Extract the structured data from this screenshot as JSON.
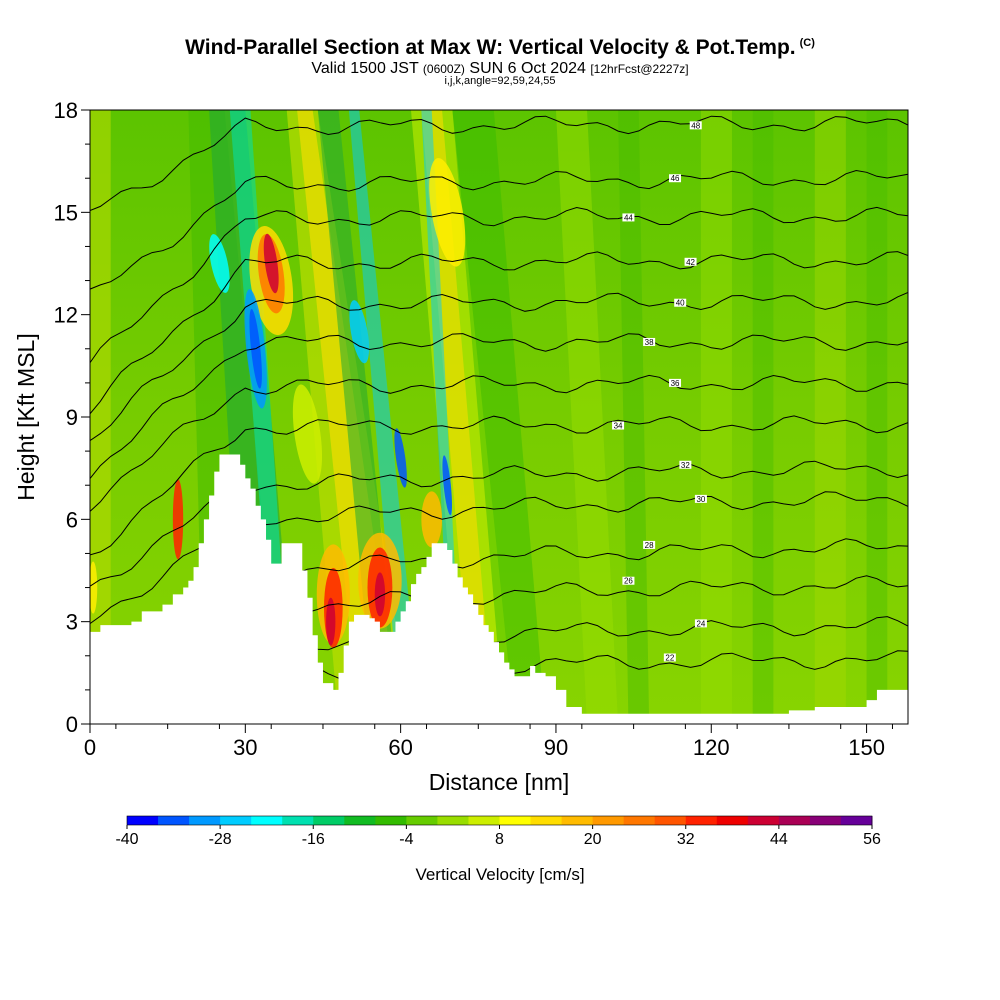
{
  "header": {
    "title": "Wind-Parallel Section at Max W: Vertical Velocity & Pot.Temp.",
    "title_mark": "(C)",
    "valid_prefix": "Valid 1500 JST",
    "valid_utc": "(0600Z)",
    "valid_date": "SUN 6 Oct 2024",
    "forecast": "[12hrFcst@2227z]",
    "params": "i,j,k,angle=92,59,24,55"
  },
  "chart_data": {
    "type": "heatmap",
    "xlabel": "Distance [nm]",
    "ylabel": "Height [Kft MSL]",
    "xlim": [
      0,
      158
    ],
    "ylim": [
      0,
      18
    ],
    "x_ticks": [
      0,
      30,
      60,
      90,
      120,
      150
    ],
    "y_ticks": [
      0,
      3,
      6,
      9,
      12,
      15,
      18
    ],
    "colorbar": {
      "title": "Vertical Velocity [cm/s]",
      "range": [
        -40,
        56
      ],
      "tick_values": [
        -40,
        -28,
        -16,
        -4,
        8,
        20,
        32,
        44,
        56
      ],
      "tick_labels": [
        "-40",
        "-28",
        "-16",
        "-4",
        "8",
        "20",
        "32",
        "44",
        "56"
      ],
      "colors": [
        "#0000ff",
        "#0055ff",
        "#0099ff",
        "#00ccff",
        "#00ffff",
        "#00e0b0",
        "#00cc66",
        "#11bb22",
        "#33bb00",
        "#66cc00",
        "#99dd00",
        "#ccee00",
        "#ffff00",
        "#ffdd00",
        "#ffbb00",
        "#ff9900",
        "#ff7700",
        "#ff5500",
        "#ff2200",
        "#ee0000",
        "#cc0033",
        "#aa0055",
        "#880077",
        "#660099"
      ]
    },
    "terrain": [
      [
        0,
        2.7
      ],
      [
        2,
        2.9
      ],
      [
        8,
        3.0
      ],
      [
        10,
        3.3
      ],
      [
        14,
        3.5
      ],
      [
        16,
        3.8
      ],
      [
        18,
        4.0
      ],
      [
        19,
        4.2
      ],
      [
        20,
        4.6
      ],
      [
        21,
        5.3
      ],
      [
        22,
        6.0
      ],
      [
        23,
        6.7
      ],
      [
        24,
        7.4
      ],
      [
        25,
        7.9
      ],
      [
        28,
        7.9
      ],
      [
        29,
        7.6
      ],
      [
        30,
        7.2
      ],
      [
        31,
        6.9
      ],
      [
        32,
        6.4
      ],
      [
        33,
        6.0
      ],
      [
        34,
        5.4
      ],
      [
        35,
        4.7
      ],
      [
        36,
        4.7
      ],
      [
        37,
        5.3
      ],
      [
        40,
        5.3
      ],
      [
        41,
        4.5
      ],
      [
        42,
        3.7
      ],
      [
        43,
        2.6
      ],
      [
        44,
        1.8
      ],
      [
        45,
        1.2
      ],
      [
        47,
        1.0
      ],
      [
        48,
        1.5
      ],
      [
        49,
        2.3
      ],
      [
        50,
        3.0
      ],
      [
        51,
        3.2
      ],
      [
        53,
        3.2
      ],
      [
        54,
        3.1
      ],
      [
        55,
        3.0
      ],
      [
        56,
        2.7
      ],
      [
        58,
        2.7
      ],
      [
        59,
        3.0
      ],
      [
        60,
        3.3
      ],
      [
        61,
        3.6
      ],
      [
        62,
        4.1
      ],
      [
        63,
        4.4
      ],
      [
        64,
        4.6
      ],
      [
        65,
        4.9
      ],
      [
        66,
        5.3
      ],
      [
        67,
        5.3
      ],
      [
        68,
        5.3
      ],
      [
        69,
        5.1
      ],
      [
        70,
        4.7
      ],
      [
        71,
        4.3
      ],
      [
        72,
        4.0
      ],
      [
        73,
        3.8
      ],
      [
        74,
        3.5
      ],
      [
        75,
        3.2
      ],
      [
        76,
        2.9
      ],
      [
        77,
        2.7
      ],
      [
        78,
        2.4
      ],
      [
        79,
        2.1
      ],
      [
        80,
        1.8
      ],
      [
        81,
        1.6
      ],
      [
        82,
        1.4
      ],
      [
        84,
        1.4
      ],
      [
        85,
        1.7
      ],
      [
        86,
        1.5
      ],
      [
        88,
        1.4
      ],
      [
        90,
        1.0
      ],
      [
        92,
        0.5
      ],
      [
        95,
        0.3
      ],
      [
        128,
        0.3
      ],
      [
        135,
        0.4
      ],
      [
        140,
        0.5
      ],
      [
        150,
        0.7
      ],
      [
        152,
        1.0
      ],
      [
        158,
        1.0
      ]
    ],
    "theta_contours": [
      {
        "theta": 22,
        "heights": [
          0.3,
          1.5,
          1.9
        ],
        "label_x": 112,
        "label_y": 1.95
      },
      {
        "theta": 24,
        "heights": [
          0.7,
          2.3,
          2.9
        ],
        "label_x": 118,
        "label_y": 2.95
      },
      {
        "theta": 26,
        "heights": [
          1.2,
          3.4,
          4.1
        ],
        "label_x": 104,
        "label_y": 4.2
      },
      {
        "theta": 28,
        "heights": [
          2.0,
          4.5,
          5.2
        ],
        "label_x": 108,
        "label_y": 5.25
      },
      {
        "theta": 30,
        "heights": [
          3.0,
          6.0,
          6.6
        ],
        "label_x": 118,
        "label_y": 6.6
      },
      {
        "theta": 32,
        "heights": [
          4.0,
          7.0,
          7.5
        ],
        "label_x": 115,
        "label_y": 7.6
      },
      {
        "theta": 34,
        "heights": [
          5.0,
          8.7,
          8.8
        ],
        "label_x": 102,
        "label_y": 8.75
      },
      {
        "theta": 36,
        "heights": [
          6.5,
          9.9,
          10.0
        ],
        "label_x": 113,
        "label_y": 10.0
      },
      {
        "theta": 38,
        "heights": [
          7.3,
          11.2,
          11.2
        ],
        "label_x": 108,
        "label_y": 11.2
      },
      {
        "theta": 40,
        "heights": [
          8.3,
          12.3,
          12.4
        ],
        "label_x": 114,
        "label_y": 12.35
      },
      {
        "theta": 42,
        "heights": [
          9.2,
          13.5,
          13.6
        ],
        "label_x": 116,
        "label_y": 13.55
      },
      {
        "theta": 44,
        "heights": [
          10.5,
          14.8,
          14.9
        ],
        "label_x": 104,
        "label_y": 14.85
      },
      {
        "theta": 46,
        "heights": [
          12.5,
          15.8,
          16.0
        ],
        "label_x": 113,
        "label_y": 16.0
      },
      {
        "theta": 48,
        "heights": [
          15.0,
          17.5,
          17.6
        ],
        "label_x": 117,
        "label_y": 17.55
      }
    ]
  }
}
